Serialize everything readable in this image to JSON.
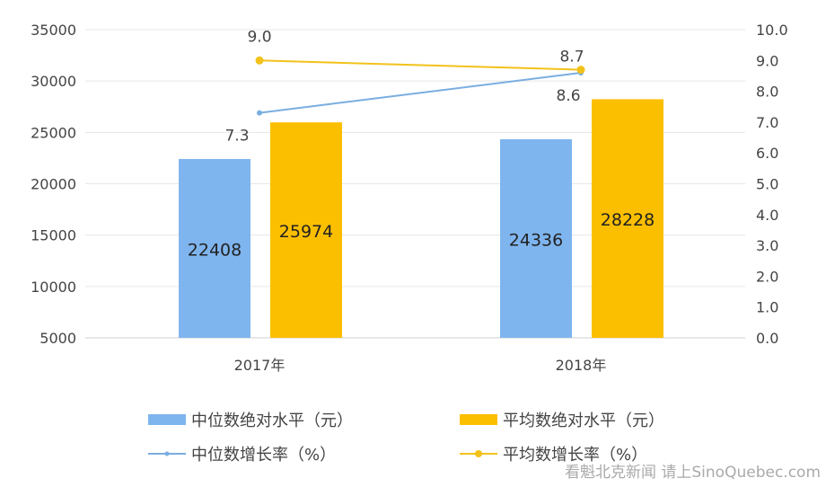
{
  "chart_data": {
    "type": "bar",
    "categories": [
      "2017年",
      "2018年"
    ],
    "series": [
      {
        "name": "中位数绝对水平（元）",
        "type": "bar",
        "axis": "left",
        "color": "#7fb5ee",
        "values": [
          22408,
          24336
        ]
      },
      {
        "name": "平均数绝对水平（元）",
        "type": "bar",
        "axis": "left",
        "color": "#fcbf00",
        "values": [
          25974,
          28228
        ]
      },
      {
        "name": "中位数增长率（%）",
        "type": "line",
        "axis": "right",
        "color": "#7aaee0",
        "values": [
          7.3,
          8.6
        ]
      },
      {
        "name": "平均数增长率（%）",
        "type": "line",
        "axis": "right",
        "color": "#f2c21a",
        "values": [
          9.0,
          8.7
        ]
      }
    ],
    "ylim_left": [
      5000,
      35000
    ],
    "yticks_left": [
      "5000",
      "10000",
      "15000",
      "20000",
      "25000",
      "30000",
      "35000"
    ],
    "ylim_right": [
      0,
      10
    ],
    "yticks_right": [
      "0.0",
      "1.0",
      "2.0",
      "3.0",
      "4.0",
      "5.0",
      "6.0",
      "7.0",
      "8.0",
      "9.0",
      "10.0"
    ],
    "grid": true,
    "legend": "bottom"
  },
  "watermark": "看魁北克新闻 请上SinoQuebec.com"
}
